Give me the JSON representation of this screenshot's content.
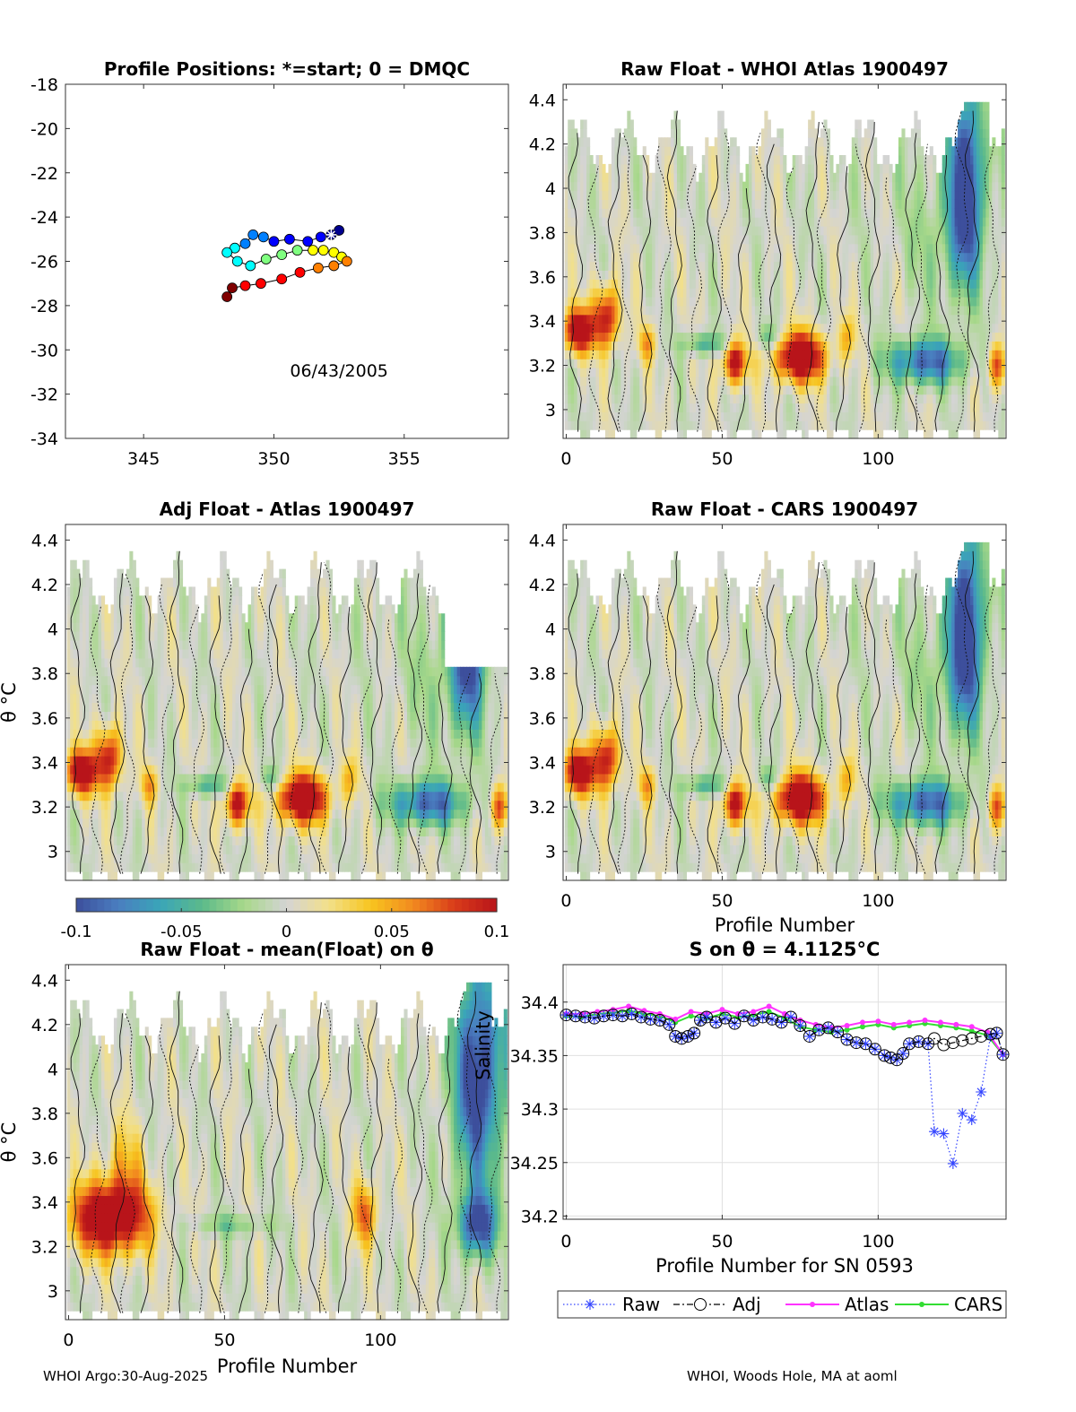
{
  "footer": {
    "left": "WHOI Argo:30-Aug-2025",
    "right": "WHOI, Woods Hole, MA at aoml"
  },
  "colors": {
    "scale": [
      "#3d4f9c",
      "#4a7ec0",
      "#3aa5b8",
      "#5cba8a",
      "#a8d88a",
      "#d4d4d4",
      "#f2e08a",
      "#f7c51f",
      "#f28a1f",
      "#d93c1a",
      "#b8141a"
    ],
    "raw": "#3344ff",
    "adj": "#000000",
    "atlas": "#ff33ff",
    "cars": "#33dd33",
    "grid": "#e0e0e0",
    "nodata": "#ffffff"
  },
  "chart_data": [
    {
      "id": "positions",
      "type": "scatter",
      "title": "Profile Positions: *=start; 0 = DMQC",
      "xlim": [
        342,
        359
      ],
      "ylim": [
        -34,
        -18
      ],
      "xticks": [
        345,
        350,
        355
      ],
      "yticks": [
        -18,
        -20,
        -22,
        -24,
        -26,
        -28,
        -30,
        -32,
        -34
      ],
      "annotation": "06/43/2005",
      "track": [
        [
          352.2,
          -24.8
        ],
        [
          352.5,
          -24.6
        ],
        [
          351.8,
          -24.9
        ],
        [
          351.3,
          -25.1
        ],
        [
          350.6,
          -25.0
        ],
        [
          350.0,
          -25.1
        ],
        [
          349.6,
          -24.9
        ],
        [
          349.2,
          -24.8
        ],
        [
          348.9,
          -25.2
        ],
        [
          348.5,
          -25.4
        ],
        [
          348.2,
          -25.6
        ],
        [
          348.6,
          -26.0
        ],
        [
          349.1,
          -26.2
        ],
        [
          349.7,
          -25.9
        ],
        [
          350.3,
          -25.7
        ],
        [
          350.9,
          -25.5
        ],
        [
          351.5,
          -25.5
        ],
        [
          351.9,
          -25.5
        ],
        [
          352.3,
          -25.6
        ],
        [
          352.6,
          -25.8
        ],
        [
          352.8,
          -26.0
        ],
        [
          352.3,
          -26.2
        ],
        [
          351.7,
          -26.3
        ],
        [
          351.0,
          -26.5
        ],
        [
          350.3,
          -26.8
        ],
        [
          349.5,
          -27.0
        ],
        [
          348.9,
          -27.1
        ],
        [
          348.4,
          -27.2
        ],
        [
          348.2,
          -27.6
        ]
      ],
      "start": [
        352.2,
        -24.8
      ]
    },
    {
      "id": "raw-whoi",
      "type": "heatmap",
      "title": "Raw Float - WHOI Atlas  1900497",
      "xlim": [
        -1,
        141
      ],
      "ylim": [
        2.87,
        4.47
      ],
      "xticks": [
        0,
        50,
        100
      ],
      "yticks": [
        3,
        3.2,
        3.4,
        3.6,
        3.8,
        4,
        4.2,
        4.4
      ],
      "xlabel": "",
      "ylabel": ""
    },
    {
      "id": "adj-atlas",
      "type": "heatmap",
      "title": "Adj Float - Atlas  1900497",
      "xlim": [
        -1,
        141
      ],
      "ylim": [
        2.87,
        4.47
      ],
      "xticks": [],
      "yticks": [
        3,
        3.2,
        3.4,
        3.6,
        3.8,
        4,
        4.2,
        4.4
      ],
      "xlabel": "",
      "ylabel": "θ °C",
      "colorbar": {
        "ticks": [
          -0.1,
          -0.05,
          0,
          0.05,
          0.1
        ],
        "ticklabels": [
          "-0.1",
          "-0.05",
          "0",
          "0.05",
          "0.1"
        ]
      }
    },
    {
      "id": "raw-cars",
      "type": "heatmap",
      "title": "Raw Float - CARS  1900497",
      "xlim": [
        -1,
        141
      ],
      "ylim": [
        2.87,
        4.47
      ],
      "xticks": [
        0,
        50,
        100
      ],
      "yticks": [
        3,
        3.2,
        3.4,
        3.6,
        3.8,
        4,
        4.2,
        4.4
      ],
      "xlabel": "Profile Number",
      "ylabel": ""
    },
    {
      "id": "raw-mean",
      "type": "heatmap",
      "title": "Raw Float - mean(Float) on θ",
      "xlim": [
        -1,
        141
      ],
      "ylim": [
        2.87,
        4.47
      ],
      "xticks": [
        0,
        50,
        100
      ],
      "yticks": [
        3,
        3.2,
        3.4,
        3.6,
        3.8,
        4,
        4.2,
        4.4
      ],
      "xlabel": "Profile Number",
      "ylabel": "θ °C"
    },
    {
      "id": "salinity",
      "type": "line",
      "title": "S on θ = 4.1125°C",
      "xlim": [
        -1,
        141
      ],
      "ylim": [
        34.197,
        34.435
      ],
      "xticks": [
        0,
        50,
        100
      ],
      "yticks": [
        34.2,
        34.25,
        34.3,
        34.35,
        34.4
      ],
      "yticklabels": [
        "34.2",
        "34.25",
        "34.3",
        "34.35",
        "34.4"
      ],
      "xlabel": "Profile Number for SN 0593",
      "ylabel": "Salinity",
      "legend": {
        "placement": "bottom",
        "entries": [
          "Raw",
          "Adj",
          "Atlas",
          "CARS"
        ]
      },
      "series": [
        {
          "name": "Raw",
          "x": [
            0,
            3,
            6,
            9,
            12,
            15,
            18,
            21,
            24,
            27,
            30,
            33,
            35,
            37,
            39,
            41,
            43,
            45,
            48,
            51,
            54,
            57,
            60,
            63,
            66,
            69,
            72,
            75,
            78,
            81,
            84,
            87,
            90,
            93,
            96,
            99,
            102,
            104,
            106,
            108,
            110,
            113,
            116,
            118,
            121,
            124,
            127,
            130,
            133,
            136,
            138,
            140
          ],
          "y": [
            34.388,
            34.387,
            34.386,
            34.385,
            34.387,
            34.388,
            34.387,
            34.389,
            34.386,
            34.384,
            34.383,
            34.379,
            34.368,
            34.366,
            34.368,
            34.371,
            34.383,
            34.386,
            34.381,
            34.385,
            34.38,
            34.387,
            34.383,
            34.386,
            34.384,
            34.381,
            34.386,
            34.378,
            34.368,
            34.374,
            34.376,
            34.372,
            34.365,
            34.362,
            34.361,
            34.356,
            34.35,
            34.348,
            34.346,
            34.352,
            34.361,
            34.363,
            34.361,
            34.279,
            34.277,
            34.249,
            34.296,
            34.29,
            34.316,
            34.368,
            34.371,
            34.351
          ]
        },
        {
          "name": "Adj",
          "x": [
            0,
            3,
            6,
            9,
            12,
            15,
            18,
            21,
            24,
            27,
            30,
            33,
            35,
            37,
            39,
            41,
            43,
            45,
            48,
            51,
            54,
            57,
            60,
            63,
            66,
            69,
            72,
            75,
            78,
            81,
            84,
            87,
            90,
            93,
            96,
            99,
            102,
            104,
            106,
            108,
            110,
            113,
            116,
            118,
            121,
            124,
            127,
            130,
            133,
            136,
            138,
            140
          ],
          "y": [
            34.388,
            34.387,
            34.386,
            34.385,
            34.387,
            34.388,
            34.387,
            34.389,
            34.386,
            34.384,
            34.383,
            34.379,
            34.368,
            34.366,
            34.368,
            34.371,
            34.383,
            34.386,
            34.381,
            34.385,
            34.38,
            34.387,
            34.383,
            34.386,
            34.384,
            34.381,
            34.386,
            34.378,
            34.368,
            34.374,
            34.376,
            34.372,
            34.365,
            34.362,
            34.361,
            34.356,
            34.35,
            34.348,
            34.346,
            34.352,
            34.361,
            34.363,
            34.361,
            34.366,
            34.36,
            34.362,
            34.364,
            34.366,
            34.368,
            34.37,
            34.371,
            34.351
          ]
        },
        {
          "name": "Atlas",
          "x": [
            0,
            5,
            10,
            15,
            20,
            25,
            30,
            35,
            40,
            45,
            50,
            55,
            60,
            65,
            70,
            75,
            80,
            85,
            90,
            95,
            100,
            105,
            110,
            115,
            120,
            125,
            130,
            135,
            140
          ],
          "y": [
            34.389,
            34.389,
            34.391,
            34.393,
            34.396,
            34.392,
            34.389,
            34.384,
            34.391,
            34.389,
            34.393,
            34.389,
            34.391,
            34.396,
            34.389,
            34.383,
            34.379,
            34.376,
            34.378,
            34.381,
            34.382,
            34.379,
            34.381,
            34.383,
            34.381,
            34.379,
            34.377,
            34.372,
            34.351
          ]
        },
        {
          "name": "CARS",
          "x": [
            0,
            5,
            10,
            15,
            20,
            25,
            30,
            35,
            40,
            45,
            50,
            55,
            60,
            65,
            70,
            75,
            80,
            85,
            90,
            95,
            100,
            105,
            110,
            115,
            120,
            125,
            130,
            135,
            140
          ],
          "y": [
            34.387,
            34.386,
            34.389,
            34.39,
            34.392,
            34.389,
            34.387,
            34.381,
            34.387,
            34.385,
            34.389,
            34.386,
            34.388,
            34.391,
            34.385,
            34.377,
            34.374,
            34.372,
            34.374,
            34.377,
            34.379,
            34.376,
            34.378,
            34.38,
            34.378,
            34.376,
            34.373,
            34.369,
            34.351
          ]
        }
      ]
    }
  ]
}
